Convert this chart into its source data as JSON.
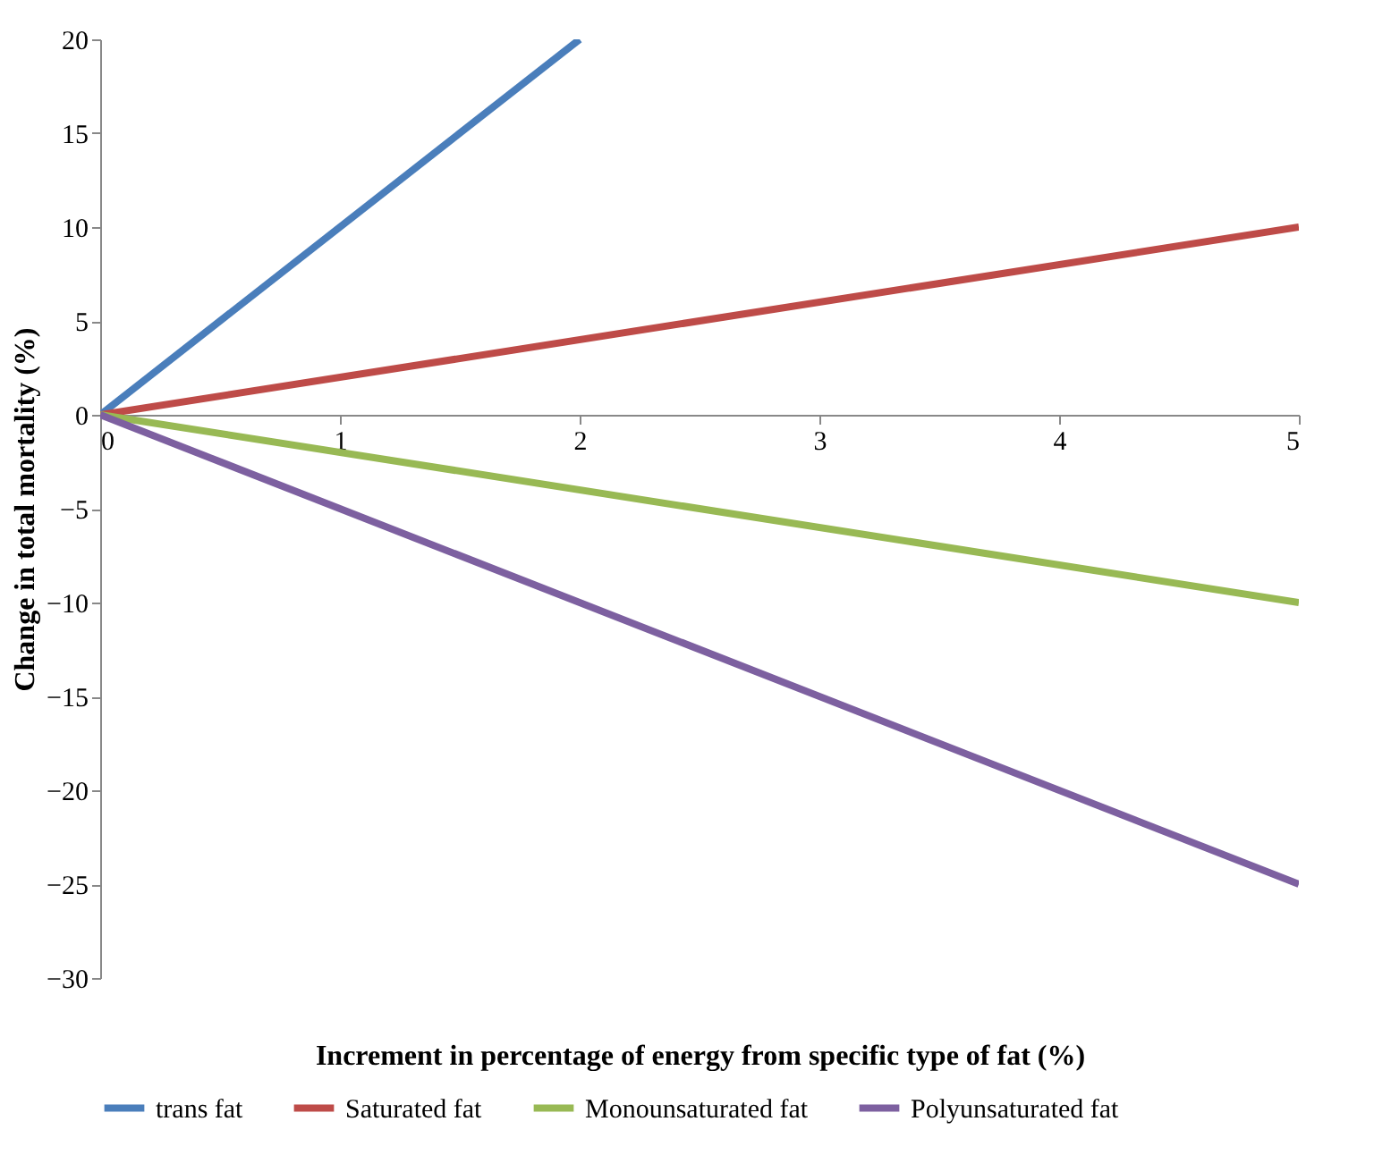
{
  "chart_data": {
    "type": "line",
    "xlabel": "Increment in percentage of energy from specific type of fat (%)",
    "ylabel": "Change in total mortality (%)",
    "xlim": [
      0,
      5
    ],
    "xticks": [
      0,
      1,
      2,
      3,
      4,
      5
    ],
    "ylim": [
      -30,
      20
    ],
    "yticks": [
      -30,
      -25,
      -20,
      -15,
      -10,
      -5,
      0,
      5,
      10,
      15,
      20
    ],
    "grid": false,
    "legend": "bottom",
    "marker": "none",
    "line_style": "solid",
    "series": [
      {
        "name": "trans fat",
        "color": "#4a7ebb",
        "x": [
          0,
          2
        ],
        "values": [
          0,
          20
        ]
      },
      {
        "name": "Saturated fat",
        "color": "#be4b48",
        "x": [
          0,
          5
        ],
        "values": [
          0,
          10
        ]
      },
      {
        "name": "Monounsaturated fat",
        "color": "#98b954",
        "x": [
          0,
          5
        ],
        "values": [
          0,
          -10
        ]
      },
      {
        "name": "Polyunsaturated fat",
        "color": "#7d60a0",
        "x": [
          0,
          5
        ],
        "values": [
          0,
          -25
        ]
      }
    ]
  }
}
